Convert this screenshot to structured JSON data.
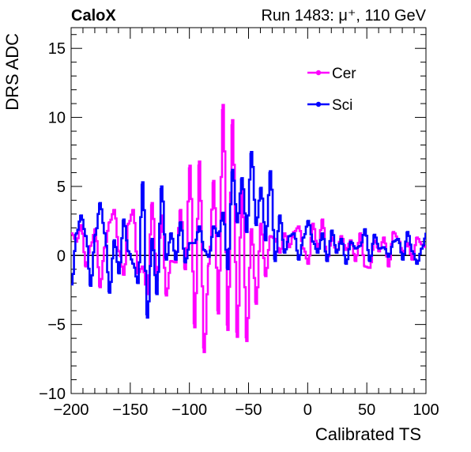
{
  "header": {
    "left_label": "CaloX",
    "right_label": "Run 1483:   μ⁺, 110 GeV"
  },
  "chart_data": {
    "type": "line",
    "xlabel": "Calibrated TS",
    "ylabel": "DRS ADC",
    "xlim": [
      -200,
      100
    ],
    "ylim": [
      -10,
      16.5
    ],
    "x_ticks": [
      -200,
      -150,
      -100,
      -50,
      0,
      50,
      100
    ],
    "x_tick_labels": [
      "−200",
      "−150",
      "−100",
      "−50",
      "0",
      "50",
      "100"
    ],
    "y_ticks": [
      -10,
      -5,
      0,
      5,
      10,
      15
    ],
    "y_tick_labels": [
      "−10",
      "−5",
      "0",
      "5",
      "10",
      "15"
    ],
    "grid": false,
    "legend_position": "top-right",
    "zero_line": true,
    "series": [
      {
        "name": "Cer",
        "color": "#ff00ff",
        "points": [
          [
            -200,
            1.6
          ],
          [
            -196,
            1.0
          ],
          [
            -192,
            2.2
          ],
          [
            -188,
            -0.8
          ],
          [
            -184,
            0.7
          ],
          [
            -180,
            1.9
          ],
          [
            -176,
            -2.3
          ],
          [
            -172,
            0.6
          ],
          [
            -168,
            2.4
          ],
          [
            -164,
            3.3
          ],
          [
            -160,
            0.3
          ],
          [
            -156,
            -1.4
          ],
          [
            -152,
            2.3
          ],
          [
            -148,
            3.3
          ],
          [
            -144,
            -1.3
          ],
          [
            -140,
            -0.8
          ],
          [
            -136,
            -2.8
          ],
          [
            -132,
            3.8
          ],
          [
            -128,
            -1.8
          ],
          [
            -124,
            2.9
          ],
          [
            -120,
            -2.9
          ],
          [
            -116,
            -0.4
          ],
          [
            -112,
            -0.5
          ],
          [
            -108,
            3.3
          ],
          [
            -104,
            -1.0
          ],
          [
            -100,
            6.5
          ],
          [
            -96,
            -5.2
          ],
          [
            -92,
            6.8
          ],
          [
            -88,
            -7.0
          ],
          [
            -84,
            -0.6
          ],
          [
            -80,
            5.4
          ],
          [
            -76,
            -4.2
          ],
          [
            -72,
            10.9
          ],
          [
            -68,
            -5.4
          ],
          [
            -64,
            9.8
          ],
          [
            -60,
            -5.9
          ],
          [
            -56,
            5.1
          ],
          [
            -52,
            -6.2
          ],
          [
            -48,
            1.9
          ],
          [
            -44,
            -3.5
          ],
          [
            -40,
            2.3
          ],
          [
            -36,
            -1.5
          ],
          [
            -32,
            1.4
          ],
          [
            -28,
            1.2
          ],
          [
            -24,
            0.2
          ],
          [
            -20,
            1.6
          ],
          [
            -16,
            0.6
          ],
          [
            -12,
            1.7
          ],
          [
            -8,
            2.1
          ],
          [
            -4,
            0.5
          ],
          [
            0,
            -0.6
          ],
          [
            4,
            2.3
          ],
          [
            8,
            0.4
          ],
          [
            12,
            2.6
          ],
          [
            16,
            -0.4
          ],
          [
            20,
            1.3
          ],
          [
            24,
            0.2
          ],
          [
            28,
            1.4
          ],
          [
            32,
            0.4
          ],
          [
            36,
            1.1
          ],
          [
            40,
            -0.4
          ],
          [
            44,
            1.6
          ],
          [
            48,
            -0.8
          ],
          [
            52,
            -0.9
          ],
          [
            56,
            1.1
          ],
          [
            60,
            0.3
          ],
          [
            64,
            1.3
          ],
          [
            68,
            -0.8
          ],
          [
            72,
            1.7
          ],
          [
            76,
            1.2
          ],
          [
            80,
            0.2
          ],
          [
            84,
            0.9
          ],
          [
            88,
            -0.3
          ],
          [
            92,
            1.3
          ],
          [
            96,
            0.8
          ],
          [
            100,
            0.6
          ]
        ]
      },
      {
        "name": "Sci",
        "color": "#0000ff",
        "points": [
          [
            -200,
            -2.1
          ],
          [
            -196,
            1.6
          ],
          [
            -192,
            2.9
          ],
          [
            -188,
            1.4
          ],
          [
            -184,
            -2.2
          ],
          [
            -180,
            1.5
          ],
          [
            -176,
            3.8
          ],
          [
            -172,
            1.6
          ],
          [
            -168,
            -2.7
          ],
          [
            -164,
            1.1
          ],
          [
            -160,
            -1.3
          ],
          [
            -156,
            2.6
          ],
          [
            -152,
            0.3
          ],
          [
            -148,
            -0.6
          ],
          [
            -144,
            -2.0
          ],
          [
            -140,
            5.3
          ],
          [
            -136,
            -4.5
          ],
          [
            -132,
            1.2
          ],
          [
            -128,
            -2.8
          ],
          [
            -124,
            5.0
          ],
          [
            -120,
            -0.3
          ],
          [
            -116,
            1.6
          ],
          [
            -112,
            -0.3
          ],
          [
            -108,
            2.4
          ],
          [
            -104,
            -0.5
          ],
          [
            -100,
            0.9
          ],
          [
            -96,
            0.9
          ],
          [
            -92,
            2.1
          ],
          [
            -88,
            0.4
          ],
          [
            -84,
            -0.1
          ],
          [
            -80,
            2.1
          ],
          [
            -76,
            1.4
          ],
          [
            -72,
            3.1
          ],
          [
            -68,
            -1.0
          ],
          [
            -64,
            6.2
          ],
          [
            -60,
            2.4
          ],
          [
            -56,
            5.6
          ],
          [
            -52,
            1.7
          ],
          [
            -48,
            7.5
          ],
          [
            -44,
            2.2
          ],
          [
            -40,
            4.9
          ],
          [
            -36,
            1.1
          ],
          [
            -32,
            6.1
          ],
          [
            -28,
            -0.4
          ],
          [
            -24,
            2.9
          ],
          [
            -20,
            0.2
          ],
          [
            -16,
            1.4
          ],
          [
            -12,
            1.6
          ],
          [
            -8,
            -0.3
          ],
          [
            -4,
            1.3
          ],
          [
            0,
            2.5
          ],
          [
            4,
            1.0
          ],
          [
            8,
            0.2
          ],
          [
            12,
            1.6
          ],
          [
            16,
            -0.4
          ],
          [
            20,
            1.8
          ],
          [
            24,
            0.2
          ],
          [
            28,
            1.2
          ],
          [
            32,
            -0.6
          ],
          [
            36,
            1.0
          ],
          [
            40,
            0.5
          ],
          [
            44,
            0.7
          ],
          [
            48,
            1.9
          ],
          [
            52,
            -0.4
          ],
          [
            56,
            1.5
          ],
          [
            60,
            0.5
          ],
          [
            64,
            0.6
          ],
          [
            68,
            -0.1
          ],
          [
            72,
            1.0
          ],
          [
            76,
            1.2
          ],
          [
            80,
            -0.3
          ],
          [
            84,
            1.7
          ],
          [
            88,
            0.3
          ],
          [
            92,
            -0.6
          ],
          [
            96,
            0.5
          ],
          [
            100,
            1.6
          ]
        ]
      }
    ]
  }
}
